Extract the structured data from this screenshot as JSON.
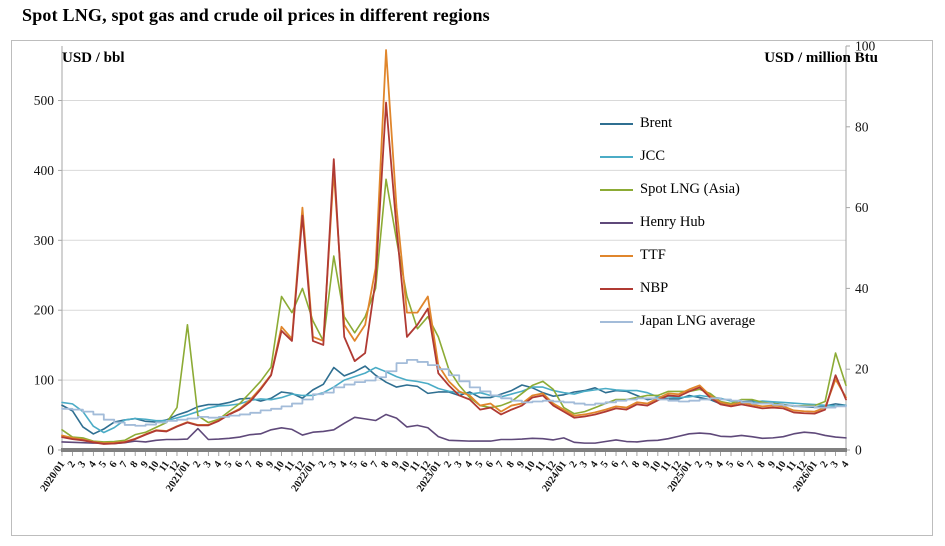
{
  "page": {
    "title": "Spot LNG, spot gas and crude oil prices in different regions"
  },
  "chart_data": {
    "type": "line",
    "title": "Spot LNG, spot gas and crude oil prices in different regions",
    "left_axis": {
      "label": "USD / bbl",
      "ticks": [
        0,
        100,
        200,
        300,
        400,
        500
      ],
      "max": 578
    },
    "right_axis": {
      "label": "USD / million Btu",
      "ticks": [
        0,
        20,
        40,
        60,
        80,
        100
      ],
      "max": 100
    },
    "grid": "horizontal",
    "legend_position": "inside-right",
    "x": [
      "2020/01",
      "2",
      "3",
      "4",
      "5",
      "6",
      "7",
      "8",
      "9",
      "10",
      "11",
      "12",
      "2021/01",
      "2",
      "3",
      "4",
      "5",
      "6",
      "7",
      "8",
      "9",
      "10",
      "11",
      "12",
      "2022/01",
      "2",
      "3",
      "4",
      "5",
      "6",
      "7",
      "8",
      "9",
      "10",
      "11",
      "12",
      "2023/01",
      "2",
      "3",
      "4",
      "5",
      "6",
      "7",
      "8",
      "9",
      "10",
      "11",
      "12",
      "2024/01",
      "2",
      "3",
      "4",
      "5",
      "6",
      "7",
      "8",
      "9",
      "10",
      "11",
      "12",
      "2025/01",
      "2",
      "3",
      "4",
      "5",
      "6",
      "7",
      "8",
      "9",
      "10",
      "11",
      "12",
      "2026/01",
      "2",
      "3",
      "4"
    ],
    "series": [
      {
        "name": "Brent",
        "color": "#2f6f91",
        "axis": "left",
        "step": false,
        "width": 1.6,
        "values": [
          64,
          56,
          33,
          23,
          30,
          40,
          43,
          45,
          41,
          40,
          43,
          50,
          55,
          62,
          65,
          65,
          68,
          73,
          74,
          70,
          74,
          83,
          81,
          74,
          86,
          94,
          118,
          106,
          112,
          120,
          107,
          97,
          90,
          93,
          91,
          81,
          83,
          83,
          78,
          83,
          75,
          75,
          80,
          85,
          93,
          89,
          82,
          77,
          79,
          83,
          85,
          89,
          82,
          85,
          84,
          78,
          72,
          75,
          73,
          73,
          78,
          75,
          72,
          66,
          64,
          69,
          70,
          67,
          67,
          65,
          63,
          62,
          61,
          63,
          66,
          64
        ]
      },
      {
        "name": "JCC",
        "color": "#4bacc6",
        "axis": "left",
        "step": false,
        "width": 1.6,
        "values": [
          68,
          66,
          55,
          34,
          25,
          32,
          43,
          45,
          44,
          42,
          42,
          46,
          50,
          55,
          60,
          63,
          64,
          66,
          71,
          73,
          72,
          75,
          80,
          78,
          78,
          82,
          90,
          100,
          105,
          110,
          118,
          112,
          105,
          100,
          98,
          95,
          88,
          84,
          82,
          80,
          82,
          78,
          76,
          80,
          84,
          90,
          90,
          85,
          82,
          80,
          84,
          86,
          88,
          86,
          85,
          85,
          82,
          76,
          76,
          75,
          76,
          78,
          76,
          74,
          70,
          67,
          68,
          70,
          69,
          68,
          67,
          66,
          65,
          64,
          63,
          64
        ]
      },
      {
        "name": "Spot LNG (Asia)",
        "color": "#8cab35",
        "axis": "right",
        "step": false,
        "width": 1.6,
        "values": [
          5.0,
          3.2,
          3.0,
          2.2,
          2.0,
          2.1,
          2.4,
          3.8,
          4.4,
          5.6,
          6.8,
          10.5,
          31,
          8.5,
          6.8,
          7.6,
          9.6,
          11.5,
          14.2,
          17,
          20.5,
          38,
          34,
          40,
          32,
          27,
          48,
          33,
          29,
          33,
          40,
          67,
          52,
          38,
          30,
          33,
          28,
          20,
          16,
          13,
          11,
          10.5,
          11,
          12,
          14,
          16,
          17,
          15,
          10.5,
          9,
          9.5,
          10.5,
          11.5,
          12.5,
          12.5,
          13,
          13.5,
          13.5,
          14.5,
          14.5,
          14.5,
          15,
          14,
          12,
          11.5,
          12.5,
          12.5,
          11.8,
          11.5,
          11.2,
          10.8,
          11,
          11,
          12,
          24,
          16
        ]
      },
      {
        "name": "Henry Hub",
        "color": "#5f497a",
        "axis": "right",
        "step": false,
        "width": 1.6,
        "values": [
          2.0,
          1.9,
          1.8,
          1.7,
          1.7,
          1.6,
          1.8,
          2.2,
          2.0,
          2.4,
          2.6,
          2.6,
          2.7,
          5.3,
          2.6,
          2.7,
          2.9,
          3.2,
          3.8,
          4.0,
          5.0,
          5.5,
          5.1,
          3.7,
          4.4,
          4.6,
          5.0,
          6.6,
          8.1,
          7.7,
          7.3,
          8.8,
          7.9,
          5.7,
          6.1,
          5.5,
          3.3,
          2.4,
          2.3,
          2.2,
          2.2,
          2.2,
          2.6,
          2.6,
          2.7,
          2.9,
          2.8,
          2.5,
          3.0,
          1.9,
          1.7,
          1.7,
          2.1,
          2.5,
          2.1,
          2.0,
          2.3,
          2.4,
          2.8,
          3.4,
          4.0,
          4.2,
          4.0,
          3.4,
          3.3,
          3.6,
          3.3,
          2.9,
          3.0,
          3.3,
          4.0,
          4.4,
          4.2,
          3.6,
          3.2,
          3.0
        ]
      },
      {
        "name": "TTF",
        "color": "#e0862c",
        "axis": "right",
        "step": false,
        "width": 1.8,
        "values": [
          3.6,
          3.0,
          2.6,
          2.0,
          1.7,
          1.8,
          2.0,
          2.8,
          3.9,
          4.9,
          4.7,
          5.9,
          6.9,
          6.2,
          6.2,
          7.3,
          8.9,
          10.2,
          12.4,
          15.3,
          18.6,
          30.5,
          27.5,
          60,
          28,
          27,
          69,
          31,
          27,
          31,
          45,
          99,
          60,
          34,
          34,
          38,
          21,
          17,
          14.5,
          13.5,
          11,
          11.5,
          9.5,
          11,
          11.5,
          13.5,
          14,
          11.5,
          10,
          8.5,
          8.8,
          9.3,
          10,
          10.8,
          10.5,
          11.8,
          11.5,
          12.8,
          14,
          13.8,
          15,
          16,
          13.5,
          11.8,
          11.2,
          11.8,
          11.2,
          10.8,
          11,
          10.8,
          9.8,
          9.6,
          9.5,
          10.5,
          17.5,
          13
        ]
      },
      {
        "name": "NBP",
        "color": "#b03a33",
        "axis": "right",
        "step": false,
        "width": 1.8,
        "values": [
          3.2,
          2.7,
          2.4,
          1.9,
          1.5,
          1.6,
          1.9,
          2.7,
          3.8,
          4.8,
          4.6,
          5.8,
          6.8,
          6.1,
          6.1,
          7.2,
          8.8,
          10.0,
          12.0,
          15.0,
          18.5,
          29.5,
          27.0,
          58,
          27,
          26,
          72,
          28,
          22,
          24,
          42,
          86,
          55,
          28,
          31,
          35,
          19,
          16,
          13.5,
          12.5,
          10,
          10.5,
          8.8,
          10,
          11,
          13,
          13.5,
          11,
          9.5,
          8,
          8.3,
          8.8,
          9.5,
          10.3,
          10,
          11.3,
          11,
          12.3,
          13.5,
          13.3,
          14.5,
          15.5,
          13,
          11.3,
          10.8,
          11.3,
          10.8,
          10.3,
          10.5,
          10.3,
          9.3,
          9.1,
          9,
          10,
          18.5,
          12.5
        ]
      },
      {
        "name": "Japan LNG average",
        "color": "#a3bcd9",
        "axis": "right",
        "step": true,
        "width": 1.8,
        "values": [
          10.2,
          10.0,
          9.5,
          8.8,
          7.5,
          6.8,
          6.2,
          6.0,
          6.3,
          6.8,
          7.2,
          7.5,
          7.8,
          8.2,
          8.0,
          8.2,
          8.5,
          8.8,
          9.2,
          9.8,
          10.2,
          10.8,
          11.5,
          12.5,
          13.8,
          14.2,
          15.5,
          16.2,
          16.8,
          17.2,
          18.0,
          19.5,
          21.5,
          22.3,
          21.8,
          21.0,
          20.0,
          18.5,
          17.0,
          15.5,
          14.5,
          13.5,
          12.8,
          12.2,
          11.8,
          12.0,
          12.2,
          12.0,
          11.8,
          11.5,
          11.2,
          11.5,
          11.8,
          12.2,
          12.5,
          12.8,
          12.8,
          12.5,
          12.2,
          12.0,
          12.2,
          12.5,
          12.8,
          12.5,
          12.2,
          11.8,
          11.5,
          11.5,
          11.2,
          11.0,
          10.8,
          10.8,
          10.5,
          10.5,
          10.8,
          11.0
        ]
      }
    ]
  }
}
